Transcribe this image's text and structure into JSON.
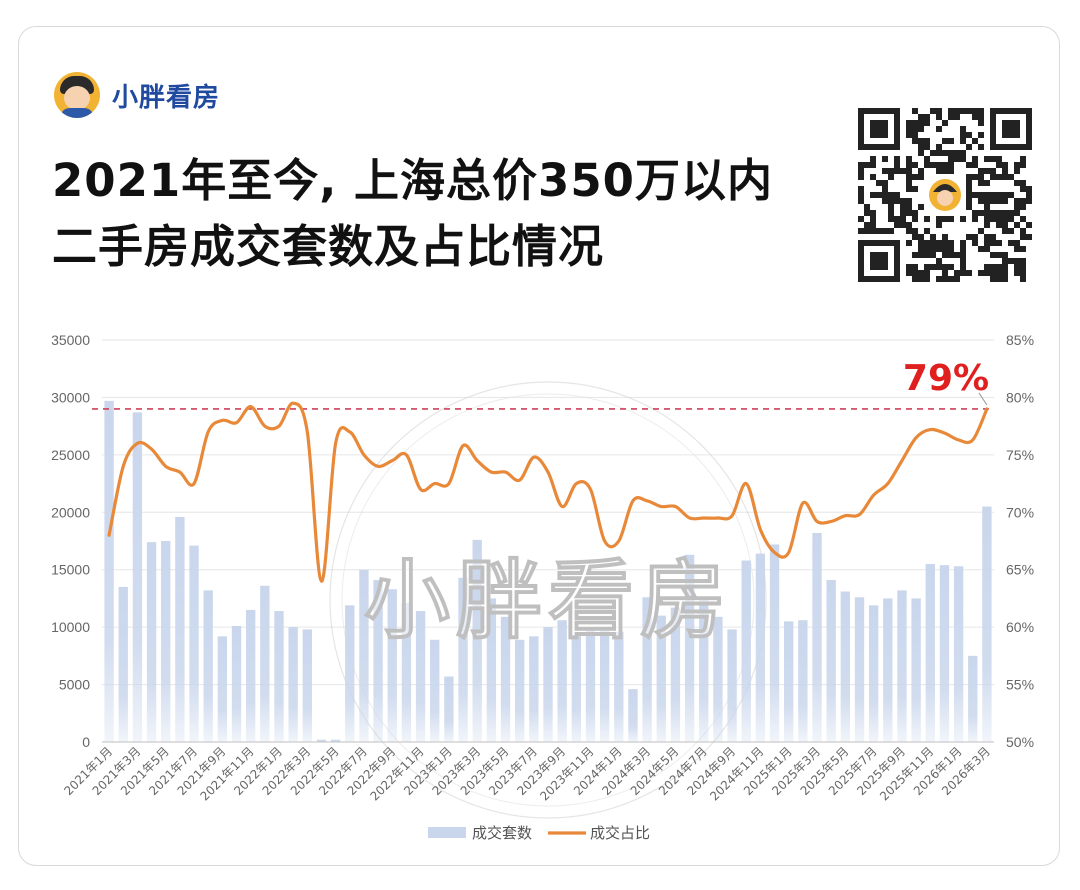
{
  "brand": {
    "name": "小胖看房"
  },
  "title": {
    "line1": "2021年至今, 上海总价350万以内",
    "line2": "二手房成交套数及占比情况"
  },
  "watermark": "小胖看房",
  "colors": {
    "bar": "#c9d6ec",
    "line": "#e8893a",
    "ref": "#d0405a",
    "callout": "#e01f1f",
    "axis": "#666666",
    "grid": "#e6e6e6",
    "brand": "#1f4aa0"
  },
  "chart_data": {
    "type": "bar+line",
    "left_ticks": [
      "35000",
      "30000",
      "25000",
      "20000",
      "15000",
      "10000",
      "5000",
      "0"
    ],
    "right_ticks": [
      "85%",
      "80%",
      "75%",
      "70%",
      "65%",
      "60%",
      "55%",
      "50%"
    ],
    "left_ylim": [
      0,
      35000
    ],
    "right_ylim": [
      50,
      85
    ],
    "categories": [
      "2021年1月",
      "2021年2月",
      "2021年3月",
      "2021年4月",
      "2021年5月",
      "2021年6月",
      "2021年7月",
      "2021年8月",
      "2021年9月",
      "2021年10月",
      "2021年11月",
      "2021年12月",
      "2022年1月",
      "2022年2月",
      "2022年3月",
      "2022年4月",
      "2022年5月",
      "2022年6月",
      "2022年7月",
      "2022年8月",
      "2022年9月",
      "2022年10月",
      "2022年11月",
      "2022年12月",
      "2023年1月",
      "2023年2月",
      "2023年3月",
      "2023年4月",
      "2023年5月",
      "2023年6月",
      "2023年7月",
      "2023年8月",
      "2023年9月",
      "2023年10月",
      "2023年11月",
      "2023年12月",
      "2024年1月",
      "2024年2月",
      "2024年3月",
      "2024年4月",
      "2024年5月",
      "2024年6月",
      "2024年7月",
      "2024年8月",
      "2024年9月",
      "2024年10月",
      "2024年11月",
      "2024年12月",
      "2025年1月",
      "2025年2月",
      "2025年3月",
      "2025年4月",
      "2025年5月",
      "2025年6月",
      "2025年7月",
      "2025年8月",
      "2025年9月",
      "2025年10月",
      "2025年11月",
      "2025年12月",
      "2026年1月",
      "2026年2月",
      "2026年3月"
    ],
    "x_ticks": [
      "2021年1月",
      "2021年3月",
      "2021年5月",
      "2021年7月",
      "2021年9月",
      "2021年11月",
      "2022年1月",
      "2022年3月",
      "2022年5月",
      "2022年7月",
      "2022年9月",
      "2022年11月",
      "2023年1月",
      "2023年3月",
      "2023年5月",
      "2023年7月",
      "2023年9月",
      "2023年11月",
      "2024年1月",
      "2024年3月",
      "2024年5月",
      "2024年7月",
      "2024年9月",
      "2024年11月",
      "2025年1月",
      "2025年3月",
      "2025年5月",
      "2025年7月",
      "2025年9月",
      "2025年11月",
      "2026年1月",
      "2026年3月"
    ],
    "series": [
      {
        "name": "成交套数",
        "axis": "left",
        "type": "bar",
        "values": [
          29700,
          13500,
          28700,
          17400,
          17500,
          19600,
          17100,
          13200,
          9200,
          10100,
          11500,
          13600,
          11400,
          10000,
          9800,
          200,
          200,
          11900,
          15000,
          14100,
          13300,
          12100,
          11400,
          8900,
          5700,
          14300,
          17600,
          12500,
          10900,
          8900,
          9200,
          10000,
          10600,
          9300,
          9900,
          10000,
          9600,
          4600,
          12600,
          11000,
          11700,
          16300,
          12400,
          10900,
          9800,
          15800,
          16400,
          17200,
          10500,
          10600,
          18200,
          14100,
          13100,
          12600,
          11900,
          12500,
          13200,
          12500,
          15500,
          15400,
          15300,
          7500,
          20500
        ]
      },
      {
        "name": "成交占比",
        "axis": "right",
        "type": "line",
        "values": [
          68,
          74,
          76,
          75.5,
          74,
          73.5,
          72.5,
          77,
          78,
          77.8,
          79.2,
          77.5,
          77.5,
          79.5,
          77,
          64,
          76,
          77,
          75,
          74,
          74.5,
          75,
          72,
          72.5,
          72.5,
          75.8,
          74.5,
          73.5,
          73.5,
          72.8,
          74.8,
          73.5,
          70.5,
          72.5,
          72,
          67.5,
          67.5,
          71,
          71,
          70.5,
          70.5,
          69.5,
          69.5,
          69.5,
          69.7,
          72.5,
          68.5,
          66.5,
          66.5,
          70.8,
          69.2,
          69.2,
          69.7,
          69.8,
          71.5,
          72.5,
          74.5,
          76.5,
          77.2,
          76.9,
          76.3,
          76.3,
          79
        ]
      }
    ],
    "reference_line": {
      "value": 79,
      "axis": "right",
      "style": "dashed"
    },
    "annotations": [
      {
        "text": "79%"
      }
    ],
    "legend": {
      "position": "bottom",
      "items": [
        "成交套数",
        "成交占比"
      ]
    },
    "grid": true
  }
}
